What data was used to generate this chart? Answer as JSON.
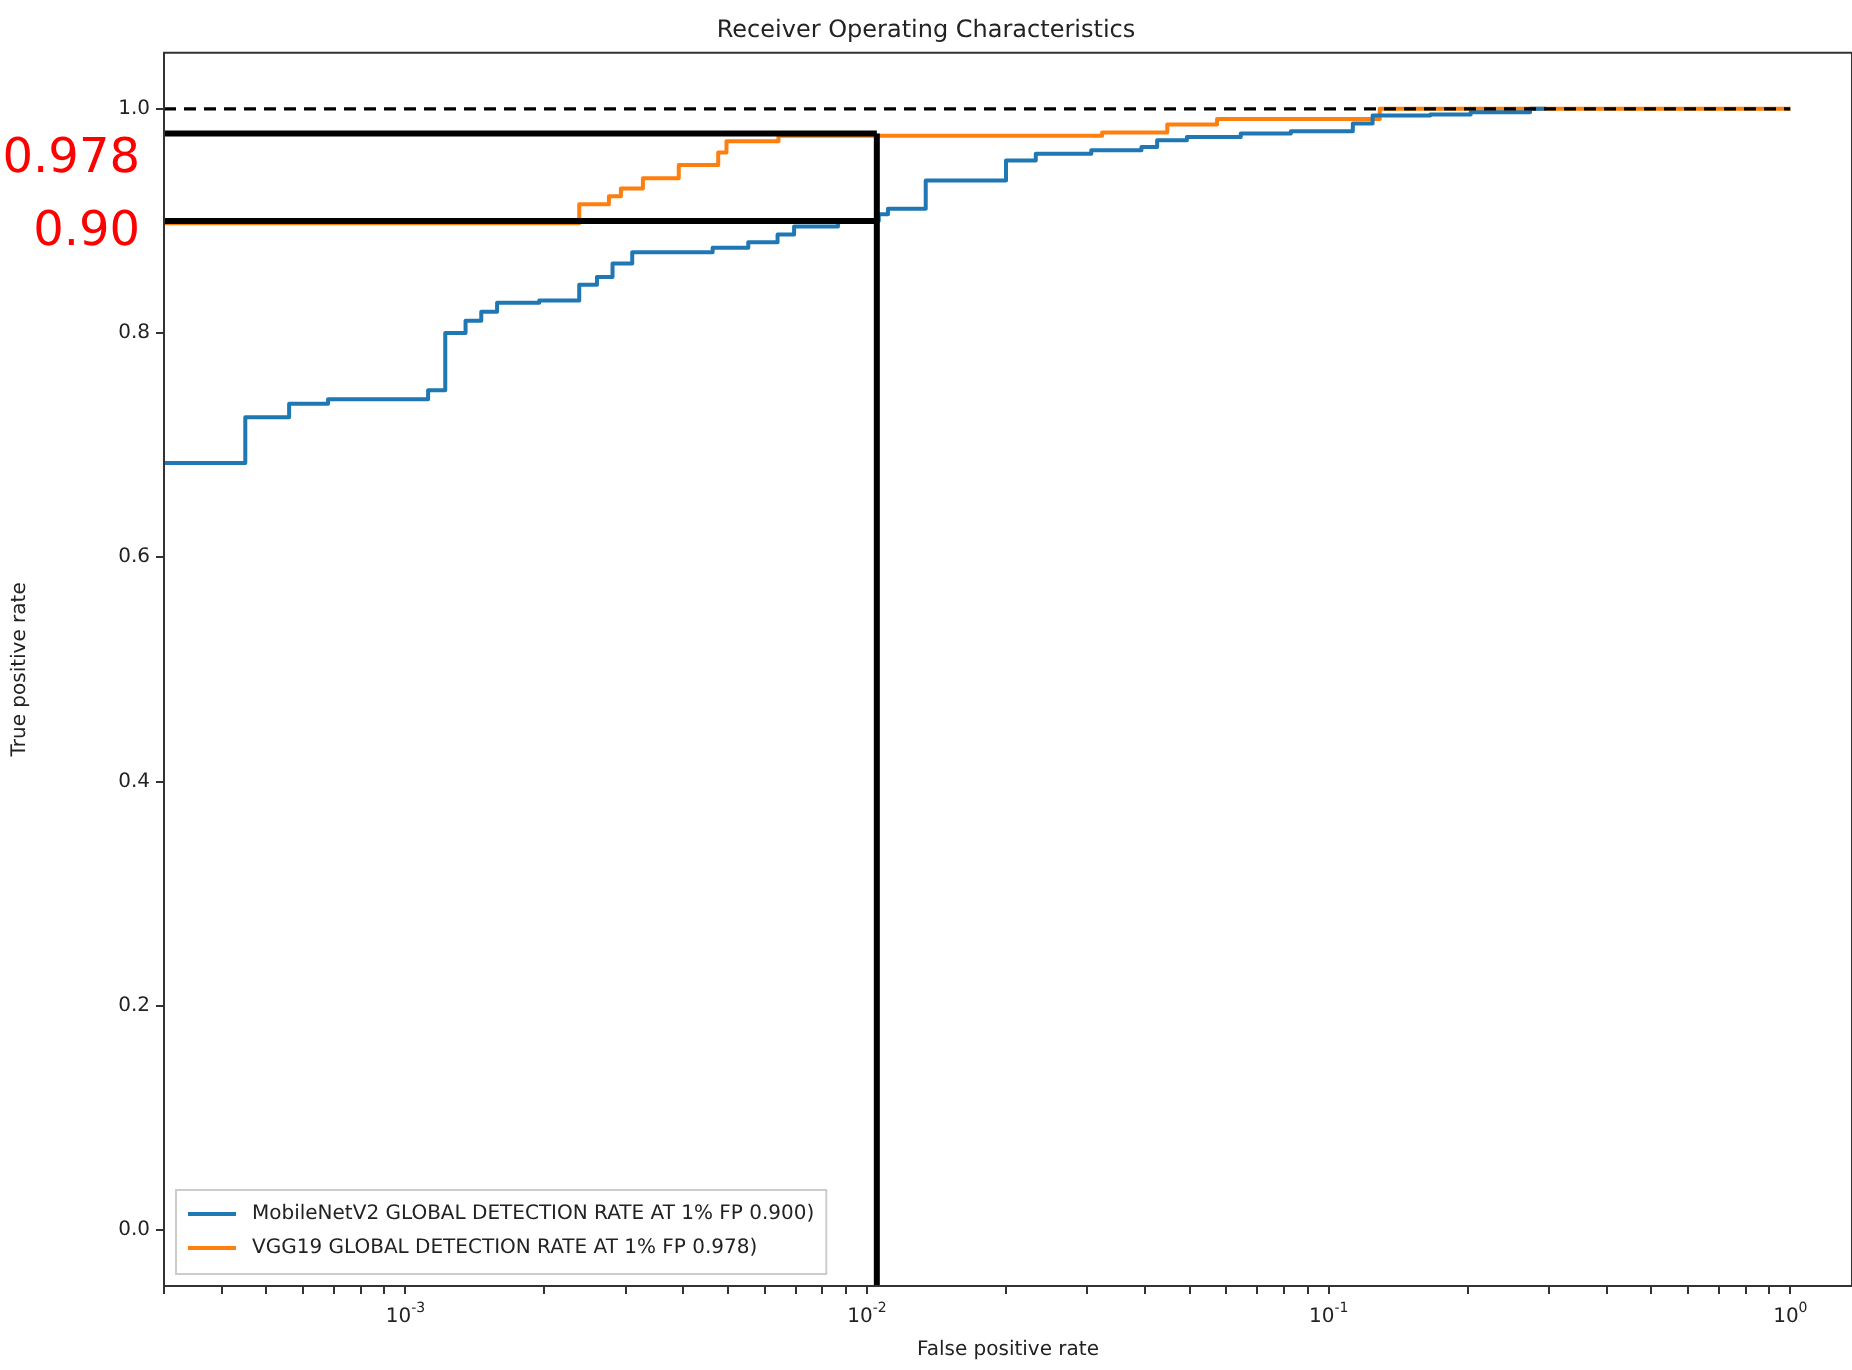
{
  "chart_data": {
    "type": "step",
    "title": "Receiver Operating Characteristics",
    "xlabel": "False positive rate",
    "ylabel": "True positive rate",
    "log": "x",
    "xlim": [
      0.0003,
      1.36
    ],
    "ylim": [
      -0.05,
      1.05
    ],
    "xticks": [
      {
        "value": 0.0003,
        "label": null
      },
      {
        "value": 0.0004,
        "label": null
      },
      {
        "value": 0.0005,
        "label": null
      },
      {
        "value": 0.0006,
        "label": null
      },
      {
        "value": 0.0007,
        "label": null
      },
      {
        "value": 0.0008,
        "label": null
      },
      {
        "value": 0.0009,
        "label": null
      },
      {
        "value": 0.001,
        "label": "10$^{-3}$"
      },
      {
        "value": 0.002,
        "label": null
      },
      {
        "value": 0.003,
        "label": null
      },
      {
        "value": 0.004,
        "label": null
      },
      {
        "value": 0.005,
        "label": null
      },
      {
        "value": 0.006,
        "label": null
      },
      {
        "value": 0.007,
        "label": null
      },
      {
        "value": 0.008,
        "label": null
      },
      {
        "value": 0.009,
        "label": null
      },
      {
        "value": 0.01,
        "label": "10$^{-2}$"
      },
      {
        "value": 0.02,
        "label": null
      },
      {
        "value": 0.03,
        "label": null
      },
      {
        "value": 0.04,
        "label": null
      },
      {
        "value": 0.05,
        "label": null
      },
      {
        "value": 0.06,
        "label": null
      },
      {
        "value": 0.07,
        "label": null
      },
      {
        "value": 0.08,
        "label": null
      },
      {
        "value": 0.09,
        "label": null
      },
      {
        "value": 0.1,
        "label": "10$^{-1}$"
      },
      {
        "value": 0.2,
        "label": null
      },
      {
        "value": 0.3,
        "label": null
      },
      {
        "value": 0.4,
        "label": null
      },
      {
        "value": 0.5,
        "label": null
      },
      {
        "value": 0.6,
        "label": null
      },
      {
        "value": 0.7,
        "label": null
      },
      {
        "value": 0.8,
        "label": null
      },
      {
        "value": 0.9,
        "label": null
      },
      {
        "value": 1,
        "label": "10$^{0}$"
      }
    ],
    "yticks": [
      {
        "value": 0,
        "label": "0.0"
      },
      {
        "value": 0.2,
        "label": "0.2"
      },
      {
        "value": 0.4,
        "label": "0.4"
      },
      {
        "value": 0.6,
        "label": "0.6"
      },
      {
        "value": 0.8,
        "label": "0.8"
      },
      {
        "value": 1,
        "label": "1.0"
      }
    ],
    "grid": false,
    "legend": "bottom left",
    "series": [
      {
        "type": "line",
        "color": "#000000",
        "line_style": "dashed",
        "x": [
          0.0003,
          1
        ],
        "values": [
          1,
          1
        ]
      },
      {
        "name": "MobileNetV2 GLOBAL DETECTION RATE AT 1% FP 0.900)",
        "color": "#1f77b4",
        "x": [
          0.0003,
          0.00045,
          0.00056,
          0.00068,
          0.00102,
          0.00112,
          0.00122,
          0.00135,
          0.00146,
          0.00158,
          0.00195,
          0.00238,
          0.0026,
          0.00281,
          0.0031,
          0.00463,
          0.00553,
          0.0064,
          0.00695,
          0.00865,
          0.0106,
          0.0111,
          0.0134,
          0.02,
          0.0232,
          0.0306,
          0.0393,
          0.0425,
          0.0493,
          0.0645,
          0.0828,
          0.1128,
          0.1245,
          0.166,
          0.203,
          0.273,
          0.296
        ],
        "values": [
          0.684,
          0.725,
          0.737,
          0.741,
          0.741,
          0.749,
          0.8,
          0.811,
          0.819,
          0.827,
          0.829,
          0.843,
          0.85,
          0.862,
          0.872,
          0.876,
          0.881,
          0.888,
          0.895,
          0.9,
          0.906,
          0.911,
          0.936,
          0.954,
          0.96,
          0.963,
          0.966,
          0.972,
          0.975,
          0.978,
          0.98,
          0.987,
          0.994,
          0.995,
          0.997,
          1,
          1
        ]
      },
      {
        "name": "VGG19 GLOBAL DETECTION RATE AT 1% FP 0.978)",
        "color": "#ff7f0e",
        "x": [
          0.0003,
          0.0018,
          0.00238,
          0.00276,
          0.00293,
          0.00327,
          0.00391,
          0.00476,
          0.00496,
          0.00643,
          0.0323,
          0.0447,
          0.0573,
          0.129,
          1
        ],
        "values": [
          0.898,
          0.898,
          0.915,
          0.922,
          0.929,
          0.938,
          0.95,
          0.961,
          0.971,
          0.976,
          0.979,
          0.986,
          0.991,
          1,
          1
        ]
      },
      {
        "type": "line",
        "color": "#000000",
        "x": [
          0.0003,
          0.0105
        ],
        "values": [
          0.978,
          0.978
        ]
      },
      {
        "type": "line",
        "color": "#000000",
        "x": [
          0.0003,
          0.0105
        ],
        "values": [
          0.9,
          0.9
        ]
      },
      {
        "type": "line",
        "color": "#000000",
        "x": [
          0.0105,
          0.0105
        ],
        "values": [
          -0.05,
          0.978
        ]
      }
    ],
    "annotations": [
      {
        "text": "0.978",
        "x": 0.0003,
        "y": 0.978
      },
      {
        "text": "0.90",
        "x": 0.0003,
        "y": 0.9
      }
    ]
  }
}
